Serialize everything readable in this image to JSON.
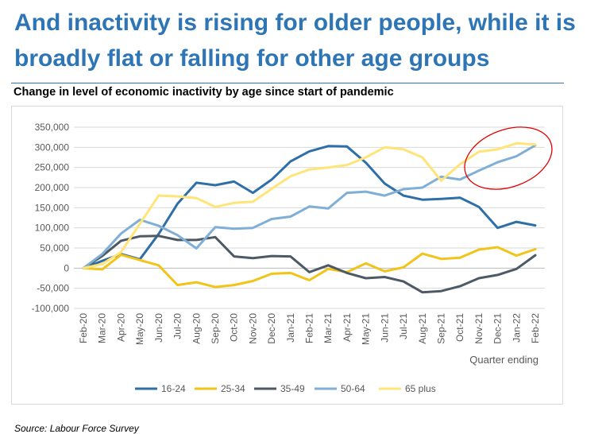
{
  "slide": {
    "title": "And inactivity is rising for older people, while it is broadly flat or falling for other age groups",
    "source": "Source: Labour Force Survey"
  },
  "colors": {
    "title": "#2e75b6",
    "highlight_ellipse": "#e00000"
  },
  "chart_data": {
    "type": "line",
    "title": "Change in level of economic inactivity by age since start of pandemic",
    "xlabel": "Quarter ending",
    "ylabel": "",
    "ylim": [
      -100000,
      350000
    ],
    "yticks": [
      -100000,
      -50000,
      0,
      50000,
      100000,
      150000,
      200000,
      250000,
      300000,
      350000
    ],
    "ytick_labels": [
      "-100,000",
      "-50,000",
      "0",
      "50,000",
      "100,000",
      "150,000",
      "200,000",
      "250,000",
      "300,000",
      "350,000"
    ],
    "grid": true,
    "legend_position": "bottom",
    "categories": [
      "Feb-20",
      "Mar-20",
      "Apr-20",
      "May-20",
      "Jun-20",
      "Jul-20",
      "Aug-20",
      "Sep-20",
      "Oct-20",
      "Nov-20",
      "Dec-20",
      "Jan-21",
      "Feb-21",
      "Mar-21",
      "Apr-21",
      "May-21",
      "Jun-21",
      "Jul-21",
      "Aug-21",
      "Sep-21",
      "Oct-21",
      "Nov-21",
      "Dec-21",
      "Jan-22",
      "Feb-22"
    ],
    "series": [
      {
        "name": "16-24",
        "color": "#2e6fa8",
        "values": [
          0,
          18000,
          35000,
          22000,
          85000,
          160000,
          212000,
          206000,
          215000,
          187000,
          220000,
          265000,
          290000,
          303000,
          302000,
          262000,
          210000,
          180000,
          170000,
          172000,
          175000,
          152000,
          100000,
          115000,
          106000
        ]
      },
      {
        "name": "25-34",
        "color": "#f2c318",
        "values": [
          0,
          -3000,
          33000,
          20000,
          7000,
          -42000,
          -35000,
          -47000,
          -42000,
          -32000,
          -14000,
          -12000,
          -30000,
          -2000,
          -10000,
          12000,
          -8000,
          2000,
          36000,
          23000,
          26000,
          46000,
          52000,
          31000,
          47000
        ]
      },
      {
        "name": "35-49",
        "color": "#4d5a65",
        "values": [
          0,
          30000,
          68000,
          79000,
          80000,
          70000,
          70000,
          77000,
          29000,
          25000,
          30000,
          29000,
          -10000,
          7000,
          -12000,
          -25000,
          -22000,
          -33000,
          -60000,
          -57000,
          -45000,
          -25000,
          -17000,
          -2000,
          32000
        ]
      },
      {
        "name": "50-64",
        "color": "#7faed6",
        "values": [
          0,
          35000,
          86000,
          120000,
          105000,
          82000,
          49000,
          102000,
          98000,
          100000,
          122000,
          128000,
          153000,
          148000,
          187000,
          190000,
          180000,
          196000,
          200000,
          227000,
          220000,
          242000,
          263000,
          278000,
          305000
        ]
      },
      {
        "name": "65 plus",
        "color": "#ffe47a",
        "values": [
          0,
          10000,
          40000,
          110000,
          180000,
          178000,
          174000,
          152000,
          162000,
          165000,
          197000,
          228000,
          245000,
          250000,
          256000,
          275000,
          300000,
          295000,
          275000,
          217000,
          258000,
          289000,
          295000,
          310000,
          307000
        ]
      }
    ],
    "annotation": "red ellipse highlighting the 50-64 and 65 plus series over Oct-21 to Feb-22"
  }
}
